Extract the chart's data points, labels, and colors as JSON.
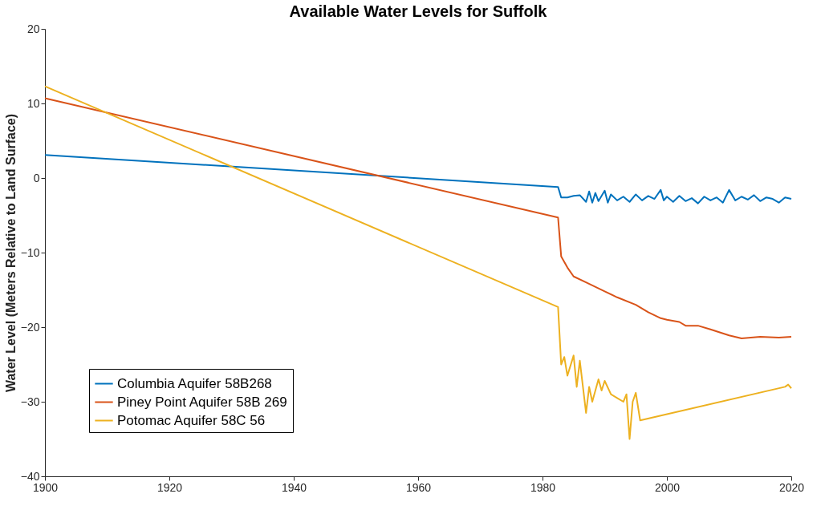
{
  "chart_data": {
    "type": "line",
    "title": "Available Water Levels for Suffolk",
    "ylabel": "Water Level (Meters Relative to Land Surface)",
    "xlim": [
      1900,
      2020
    ],
    "xticks": [
      1900,
      1920,
      1940,
      1960,
      1980,
      2000,
      2020
    ],
    "ylim": [
      -40,
      20
    ],
    "yticks": [
      -40,
      -30,
      -20,
      -10,
      0,
      10,
      20
    ],
    "grid": false,
    "legend": "bottom left",
    "line_style": "solid",
    "marker": "none",
    "series": [
      {
        "name": "Columbia Aquifer 58B268",
        "color": "#0072bd",
        "x": [
          1900,
          1982.5,
          1983,
          1984,
          1985,
          1986,
          1987,
          1987.5,
          1988,
          1988.5,
          1989,
          1990,
          1990.5,
          1991,
          1992,
          1993,
          1994,
          1995,
          1996,
          1997,
          1998,
          1999,
          1999.5,
          2000,
          2001,
          2002,
          2003,
          2004,
          2005,
          2006,
          2007,
          2008,
          2009,
          2010,
          2011,
          2012,
          2013,
          2014,
          2015,
          2016,
          2017,
          2018,
          2019,
          2020
        ],
        "values": [
          3.1,
          -1.2,
          -2.6,
          -2.6,
          -2.4,
          -2.3,
          -3.2,
          -1.8,
          -3.3,
          -2.0,
          -3.1,
          -1.7,
          -3.3,
          -2.2,
          -3.0,
          -2.5,
          -3.2,
          -2.2,
          -3.0,
          -2.4,
          -2.8,
          -1.6,
          -3.0,
          -2.5,
          -3.2,
          -2.4,
          -3.1,
          -2.7,
          -3.4,
          -2.5,
          -3.0,
          -2.6,
          -3.3,
          -1.6,
          -3.0,
          -2.5,
          -2.9,
          -2.3,
          -3.1,
          -2.6,
          -2.8,
          -3.3,
          -2.6,
          -2.8
        ]
      },
      {
        "name": "Piney Point Aquifer 58B 269",
        "color": "#d95319",
        "x": [
          1900,
          1982.5,
          1983,
          1984,
          1985,
          1987,
          1990,
          1992,
          1995,
          1997,
          1999,
          2000,
          2002,
          2003,
          2005,
          2007,
          2010,
          2012,
          2015,
          2018,
          2020
        ],
        "values": [
          10.7,
          -5.3,
          -10.5,
          -12.0,
          -13.2,
          -14.0,
          -15.2,
          -16.0,
          -17.0,
          -18.0,
          -18.8,
          -19.0,
          -19.3,
          -19.8,
          -19.8,
          -20.3,
          -21.1,
          -21.5,
          -21.3,
          -21.4,
          -21.3
        ]
      },
      {
        "name": "Potomac Aquifer 58C 56",
        "color": "#edb120",
        "x": [
          1900,
          1982.5,
          1983,
          1983.5,
          1984,
          1985,
          1985.5,
          1986,
          1987,
          1987.5,
          1988,
          1989,
          1989.5,
          1990,
          1991,
          1992,
          1993,
          1993.5,
          1994,
          1994.5,
          1995,
          1995.7,
          2019,
          2019.5,
          2020
        ],
        "values": [
          12.3,
          -17.3,
          -25.0,
          -24.0,
          -26.5,
          -23.8,
          -28.0,
          -24.5,
          -31.5,
          -28.0,
          -30.0,
          -27.0,
          -28.5,
          -27.2,
          -29.0,
          -29.5,
          -30.0,
          -29.0,
          -35.0,
          -30.0,
          -28.8,
          -32.5,
          -28.0,
          -27.7,
          -28.2
        ]
      }
    ]
  }
}
